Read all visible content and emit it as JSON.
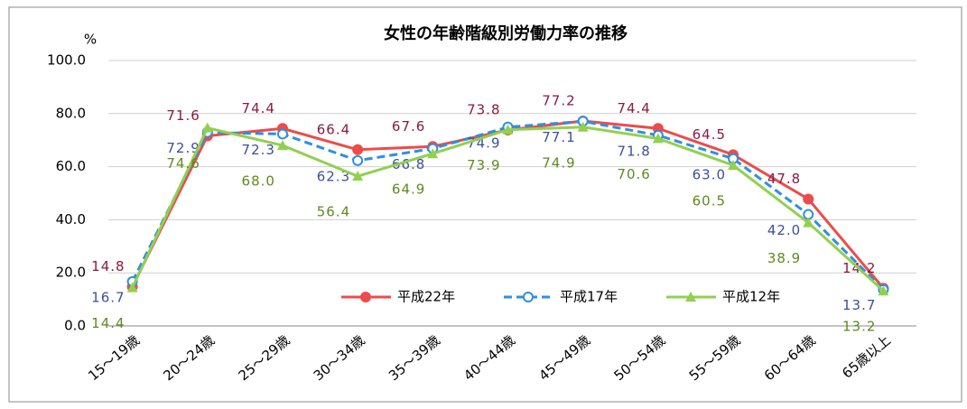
{
  "chart_data": {
    "type": "line",
    "title": "女性の年齢階級別労働力率の推移",
    "ylabel": "%",
    "categories": [
      "15～19歳",
      "20～24歳",
      "25～29歳",
      "30～34歳",
      "35～39歳",
      "40～44歳",
      "45～49歳",
      "50～54歳",
      "55～59歳",
      "60～64歳",
      "65歳以上"
    ],
    "series": [
      {
        "name": "平成22年",
        "color": "#ee4b4b",
        "label_color": "#8b1a3f",
        "marker": "circle",
        "dash": false,
        "values": [
          14.8,
          71.6,
          74.4,
          66.4,
          67.6,
          73.8,
          77.2,
          74.4,
          64.5,
          47.8,
          14.2
        ],
        "value_labels": [
          "14.8",
          "71.6",
          "74.4",
          "66.4",
          "67.6",
          "73.8",
          "77.2",
          "74.4",
          "64.5",
          "47.8",
          "14.2"
        ]
      },
      {
        "name": "平成17年",
        "color": "#2f8fe0",
        "label_color": "#3b4f9e",
        "marker": "open-circle",
        "dash": true,
        "values": [
          16.7,
          72.9,
          72.3,
          62.3,
          66.8,
          74.9,
          77.1,
          71.8,
          63.0,
          42.0,
          13.7
        ],
        "value_labels": [
          "16.7",
          "72.9",
          "72.3",
          "62.3",
          "66.8",
          "74.9",
          "77.1",
          "71.8",
          "63.0",
          "42.0",
          "13.7"
        ]
      },
      {
        "name": "平成12年",
        "color": "#92d050",
        "label_color": "#5e8a1e",
        "marker": "triangle",
        "dash": false,
        "values": [
          14.4,
          74.6,
          68.0,
          56.4,
          64.9,
          73.9,
          74.9,
          70.6,
          60.5,
          38.9,
          13.2
        ],
        "value_labels": [
          "14.4",
          "74.6",
          "68.0",
          "56.4",
          "64.9",
          "73.9",
          "74.9",
          "70.6",
          "60.5",
          "38.9",
          "13.2"
        ]
      }
    ],
    "ylim": [
      0,
      100
    ],
    "yticks": [
      {
        "value": 0,
        "label": "0.0"
      },
      {
        "value": 20,
        "label": "20.0"
      },
      {
        "value": 40,
        "label": "40.0"
      },
      {
        "value": 60,
        "label": "60.0"
      },
      {
        "value": 80,
        "label": "80.0"
      },
      {
        "value": 100,
        "label": "100.0"
      }
    ],
    "grid": true
  }
}
